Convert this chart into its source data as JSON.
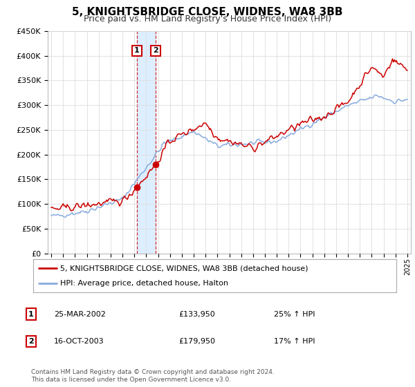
{
  "title": "5, KNIGHTSBRIDGE CLOSE, WIDNES, WA8 3BB",
  "subtitle": "Price paid vs. HM Land Registry's House Price Index (HPI)",
  "red_label": "5, KNIGHTSBRIDGE CLOSE, WIDNES, WA8 3BB (detached house)",
  "blue_label": "HPI: Average price, detached house, Halton",
  "sale1_date_label": "25-MAR-2002",
  "sale1_price": 133950,
  "sale1_pct": "25% ↑ HPI",
  "sale1_x": 2002.21,
  "sale2_date_label": "16-OCT-2003",
  "sale2_price": 179950,
  "sale2_pct": "17% ↑ HPI",
  "sale2_x": 2003.79,
  "ylim": [
    0,
    450000
  ],
  "xlim": [
    1994.7,
    2025.3
  ],
  "footer": "Contains HM Land Registry data © Crown copyright and database right 2024.\nThis data is licensed under the Open Government Licence v3.0.",
  "background_color": "#ffffff",
  "grid_color": "#dddddd",
  "red_color": "#cc0000",
  "blue_color": "#88aadd",
  "shade_color": "#ddeeff"
}
